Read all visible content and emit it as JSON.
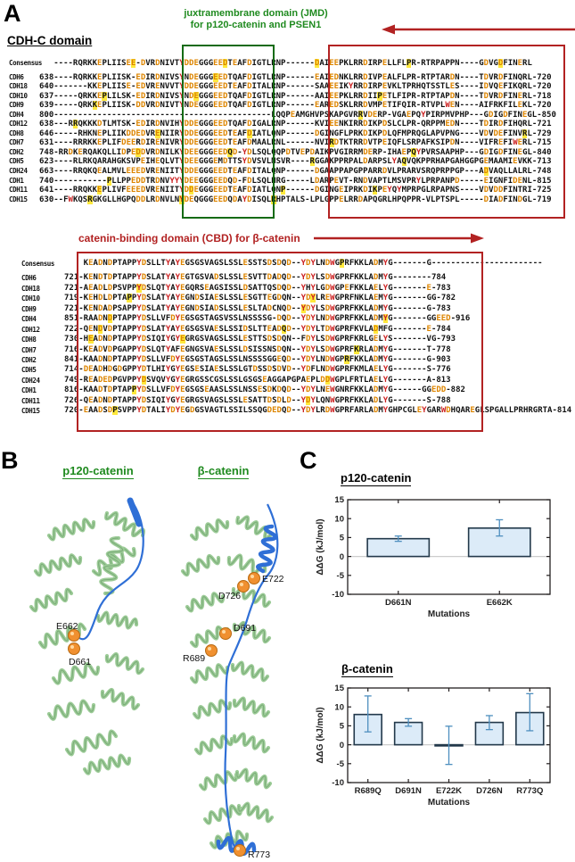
{
  "panel_letters": {
    "a": "A",
    "b": "B",
    "c": "C"
  },
  "panel_a": {
    "jmd_title_line1": "juxtramembrane domain (JMD)",
    "jmd_title_line2": "for p120-catenin and PSEN1",
    "heading": "CDH-C domain",
    "cbd_title": "catenin-binding domain (CBD) for β-catenin",
    "block1_rows": [
      {
        "n": "Consensus",
        "t": "   ----RQRKKEPLIISEE-DVRDNIVTYDDEGGGEEDTEAFDIGTLRNP------DAIEEPKLRRDIRPELLFLPR-RTRPAPPN----GDVGDFINERL"
      },
      {
        "n": "CDH6",
        "t": "638----RQRKKEPLIISK-EDIRDNIVSYNDEGGGEEDTQAFDIGTLRNP------EAIEDNKLRRDIVPEALFLPR-RTPTARDN----TDVRDFINQRL-720"
      },
      {
        "n": "CDH18",
        "t": "640-------KKEPLIISE-EDVRENVVTYDDEGGGEEDTEAFDITALRNP------SAAEEIKYRRDIRPEVKLTPRHQTSSTLES----IDVQEFIKQRL-720"
      },
      {
        "n": "CDH10",
        "t": "637-----QRKKEPLILSK-EDIRDNIVSYNDEGGGEEDTQAFDIGTLRNP------AAIEEPKLRRDIIPETLFIPR-RTPTAPDN----TDVRDFINERL-718"
      },
      {
        "n": "CDH9",
        "t": "639-----QRKKEPLIISK-DDVRDNIVTYNDEGGGEEDTQAFDIGTLRNP------EAREDSKLRRDVMPETIFQIR-RTVPLWEN----AIFRKFILEKL-720"
      },
      {
        "n": "CDH4",
        "t": "800---------------------------------------------LQQPEAMGHVPSKAPGVRRVDERP-VGAEPQYPIRPMVPHP---GDIGDFINEGL-850"
      },
      {
        "n": "CDH12",
        "t": "638---RRQKKKDTLMTSK-EDIRDNVIHYDDEGGGEEDTQAFDIGALRNP------KVIEENKIRRDIKPDSLCLPR-QRPPMEDN----TDIRDFIHQRL-721"
      },
      {
        "n": "CDH8",
        "t": "646-----RHKNEPLIIKDDEDVRENIIRYDDEGGGEEDTEAFDIATLQNP------DGINGFLPRKDIKPDLQFMPRQGLAPVPNG----VDVDEFINVRL-729"
      },
      {
        "n": "CDH7",
        "t": "631----RRRKKEPLIFDEERDIRENIVRYDDEGGGEEDTEAFDMAALRNL------NVIRDTKTRRDVTPEIQFLSRPAFKSIPDN----VIFREFIWERL-715"
      },
      {
        "n": "CDH2",
        "t": "748-RRDKERQAKQLLIDPEDDVRDNILKYDEEGGGEEDQD-YDLSQLQQPDTVEPDAIKPVGIRRMDERP-IHAEPQYPVRSAAPHP---GDIGDFINEGL-840"
      },
      {
        "n": "CDH5",
        "t": "623----RLRKQARAHGKSVPEIHEQLVTYDEEGGGEMDTTSYDVSVLNSVR----RGGAKPPRPALDARPSLYAQVQKPPRHAPGAHGGPGEMAAMIEVKK-713"
      },
      {
        "n": "CDH24",
        "t": "663----RRQKQEALMVLEEEDVRENIITYDDEGGGEEDTEAFDITALQNP------DGAAPPAPGPPARRDVLPRARVSRQPRPPGP---ADVAQLLALRL-748"
      },
      {
        "n": "CDH1",
        "t": "740-----------PLLPPEDDTRDNVYYYDEEGGGEEDQD-FDLSQLHRG-----LDARPEVT-RNDVAPTLMSVPRYLPRPANPD-----EIGNFIDENL-815"
      },
      {
        "n": "CDH11",
        "t": "641----RRQKKEPLIVFEEEDVRENIITYDDEGGGEEDTEAFDIATLQNP------DGINGEIPRKDIKPEYQYMPRPGLRPAPNS----VDVDDFINTRI-725"
      },
      {
        "n": "CDH15",
        "t": "630--FWKQSRGKGLLHGPQDDLRDNVLNYDEQGGGEEDQDAYDISQLRHPTALS-LPLGPPELRRDAPQGRLHPQPPR-VLPTSPL-----DIADFINDGL-719"
      }
    ],
    "block2_rows": [
      {
        "n": "Consensus",
        "t": "    KEADNDPTAPPYDSLLTYAYEGSGSVAGSLSSLESSTSDSDQD--YDYLNDWGPRFKKLADMYG-------G-----------------------"
      },
      {
        "n": "CDH6",
        "t": "721-KENDTDPTAPPYDSLATYAYEGTGSVADSLSSLESVTTDADQD--YDYLSDWGPRFKKLADMYG--------784"
      },
      {
        "n": "CDH18",
        "t": "721-AEADLDPSVPPYDSLQTYAYEGQRSEAGSISSLDSATTQSDQD--YHYLGDWGPEFKKLAELYG-------E-783"
      },
      {
        "n": "CDH10",
        "t": "719-KEHDLDPTAPPYDSLATYAYEGNDSIAESLSSLESGTTEGDQN--YDYLREWGPRFNKLAEMYG-------GG-782"
      },
      {
        "n": "CDH9",
        "t": "721-KENDADPSAPPYDSLATYAYEGNDSIADSLSSLESLTADCNQD--YDYLSDWGPRFKKLADMYG-------G-783"
      },
      {
        "n": "CDH4",
        "t": "851-RAADNDPTAPPYDSLLVFDYEGSGSTAGSVSSLNSSSSG-DQD--YDYLNDWGPRFKKLADMYG-------GGEED-916"
      },
      {
        "n": "CDH12",
        "t": "722-QENDVDPTAPPYDSLATYAYEGSGSVAESLSSIDSLTTEADQD--YDYLTDWGPRFKVLADMFG-------E-784"
      },
      {
        "n": "CDH8",
        "t": "730-HEADNDPTAPPYDSIQIYGYEGRGSVAGSLSSLESTTSDSDQN--FDYLSDWGPRFKRLGELYS-------VG-793"
      },
      {
        "n": "CDH7",
        "t": "716-KEADVDPGAPPYDSLQTYAFEGNGSVAESLSSLDSISSNSDQN--YDYLSDWGPRFKRLADMYG-------T-778"
      },
      {
        "n": "CDH2",
        "t": "841-KAADNDPTAPPYDSLLVFDYEGSGSTAGSLSSLNSSSSGGEQD--YDYLNDWGPRFKKLADMYG-------G-903"
      },
      {
        "n": "CDH5",
        "t": "714-DEADHDGDGPPYDTLHIYGYEGSESIAESLSSLGTDSSDSDVD--YDFLNDWGPRFKMLAELYG-------S-776"
      },
      {
        "n": "CDH24",
        "t": "749-READEDPGVPPYDSVQVYGYEGRGSSCGSLSSLGSGSEAGGAPGPAEPLDDWGPLFRTLAELYG-------A-813"
      },
      {
        "n": "CDH1",
        "t": "816-KAADTDPTAPPYDSLLVFDYEGSGSEAASLSSLNSSESDKDQD--YDYLNEWGNRFKKLADMYG------GGEDD-882"
      },
      {
        "n": "CDH11",
        "t": "726-QEADNDPTAPPYDSIQIYGYEGRGSVAGSLSSLESATTDSDLD--YDYLQNWGPRFKKLADLYG-------S-788"
      },
      {
        "n": "CDH15",
        "t": "720-EAADSDPSVPPYDTALIYDYEGDGSVAGTLSSILSSQGDEDQD--YDYLRDWGPRFARLADMYGHPCGLEYGARWDHQAREGLSPGALLPRHRGRTA-814"
      }
    ]
  },
  "panel_b": {
    "left_title": "p120-catenin",
    "right_title": "β-catenin",
    "left_markers": [
      {
        "label": "E662"
      },
      {
        "label": "D661"
      }
    ],
    "right_markers": [
      {
        "label": "E722"
      },
      {
        "label": "D726"
      },
      {
        "label": "D691"
      },
      {
        "label": "R689"
      },
      {
        "label": "R773"
      }
    ]
  },
  "chart_data": [
    {
      "type": "bar",
      "title": "p120-catenin",
      "categories": [
        "D661N",
        "E662K"
      ],
      "values": [
        4.7,
        7.5
      ],
      "error_low": [
        4.0,
        5.4
      ],
      "error_high": [
        5.4,
        9.7
      ],
      "xlabel": "Mutations",
      "ylabel": "ΔΔG (kJ/mol)",
      "ylim": [
        -10,
        15
      ],
      "yticks": [
        -10,
        -5,
        0,
        5,
        10,
        15
      ],
      "grid": "zero-line-only",
      "legend": "none"
    },
    {
      "type": "bar",
      "title": "β-catenin",
      "categories": [
        "R689Q",
        "D691N",
        "E722K",
        "D726N",
        "R773Q"
      ],
      "values": [
        8.0,
        5.9,
        -0.3,
        5.9,
        8.5
      ],
      "error_low": [
        3.4,
        4.9,
        -5.2,
        4.0,
        3.7
      ],
      "error_high": [
        12.9,
        6.9,
        4.9,
        7.7,
        13.5
      ],
      "xlabel": "Mutations",
      "ylabel": "ΔΔG (kJ/mol)",
      "ylim": [
        -10,
        15
      ],
      "yticks": [
        -10,
        -5,
        0,
        5,
        10,
        15
      ],
      "grid": "zero-line-only",
      "legend": "none"
    }
  ],
  "colors": {
    "annotation_green": "#1f8a1f",
    "box_green": "#156b15",
    "annotation_red": "#b22222",
    "seq_orange": "#dd8500",
    "seq_red": "#cc2222",
    "seq_highlight": "#ffe93d",
    "bar_fill": "#dcebf8",
    "bar_stroke": "#22384a",
    "error_bar": "#4e8fbf",
    "ribbon_green": "#9ccb97",
    "ribbon_dark": "#5f945f",
    "chain_blue": "#2f6fd6",
    "sphere_orange": "#f09030"
  }
}
